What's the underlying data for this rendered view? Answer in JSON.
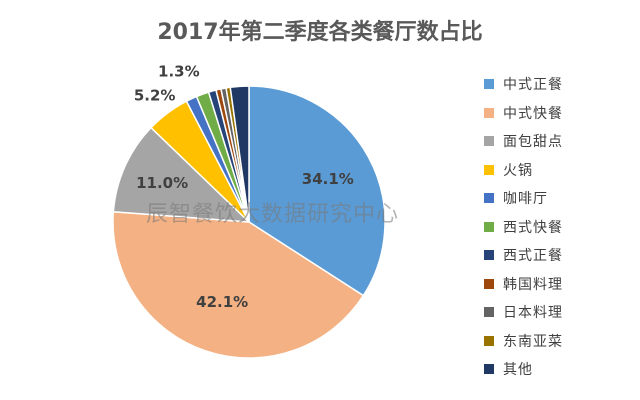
{
  "chart_data": {
    "type": "pie",
    "title": "2017年第二季度各类餐厅数占比",
    "watermark": "辰智餐饮大数据研究中心",
    "slices": [
      {
        "name": "中式正餐",
        "value": 34.1,
        "label": "34.1%",
        "color": "#5b9bd5"
      },
      {
        "name": "中式快餐",
        "value": 42.1,
        "label": "42.1%",
        "color": "#f4b183"
      },
      {
        "name": "面包甜点",
        "value": 11.0,
        "label": "11.0%",
        "color": "#a5a5a5"
      },
      {
        "name": "火锅",
        "value": 5.2,
        "label": "5.2%",
        "color": "#ffc000"
      },
      {
        "name": "咖啡厅",
        "value": 1.3,
        "label": "1.3%",
        "color": "#4472c4"
      },
      {
        "name": "西式快餐",
        "value": 1.5,
        "label": "",
        "color": "#70ad47"
      },
      {
        "name": "西式正餐",
        "value": 0.9,
        "label": "",
        "color": "#264478"
      },
      {
        "name": "韩国料理",
        "value": 0.6,
        "label": "",
        "color": "#9e480e"
      },
      {
        "name": "日本料理",
        "value": 0.6,
        "label": "",
        "color": "#636363"
      },
      {
        "name": "东南亚菜",
        "value": 0.5,
        "label": "",
        "color": "#997300"
      },
      {
        "name": "其他",
        "value": 2.2,
        "label": "",
        "color": "#1f3864"
      }
    ],
    "legend_position": "right"
  }
}
